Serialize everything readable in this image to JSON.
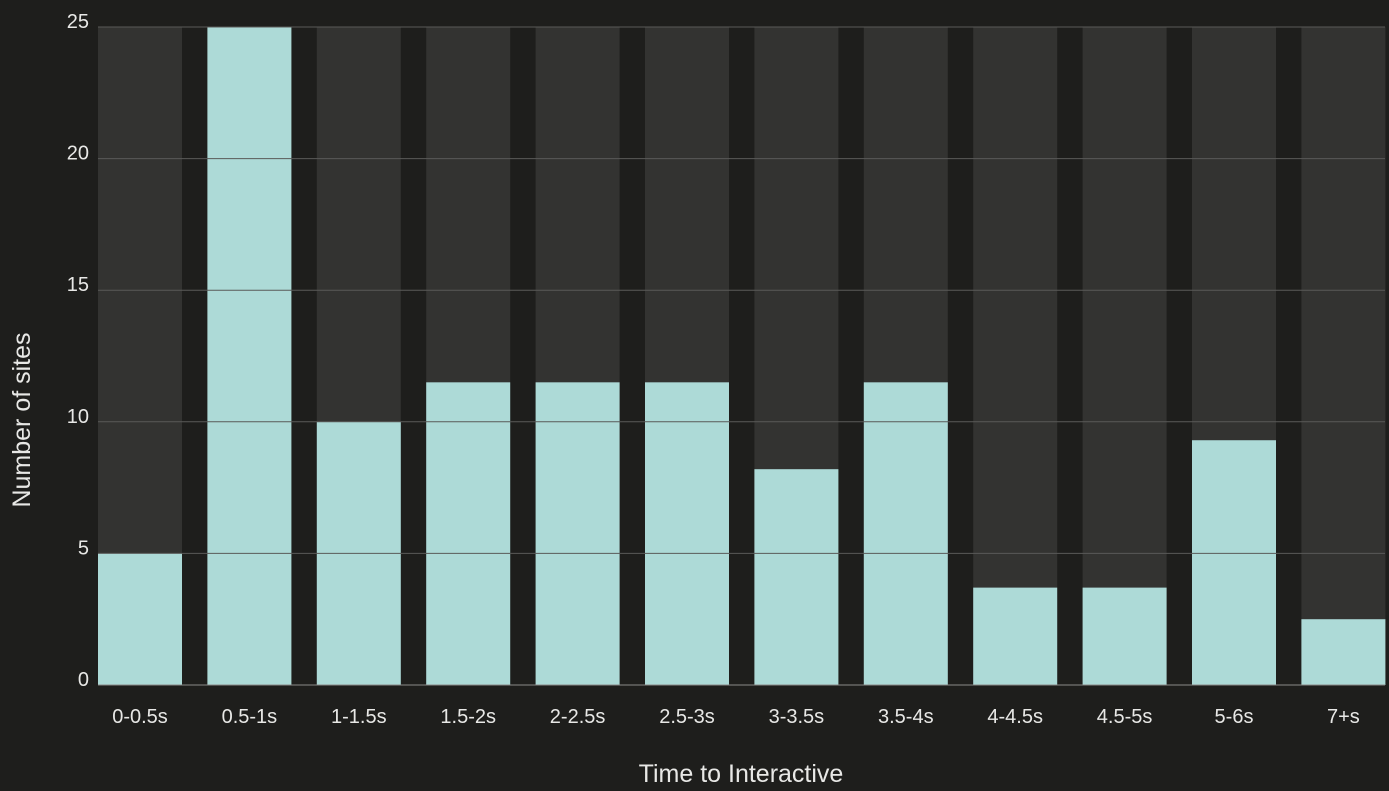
{
  "chart_data": {
    "type": "bar",
    "title": "",
    "xlabel": "Time to Interactive",
    "ylabel": "Number of sites",
    "ylim": [
      0,
      25
    ],
    "yticks": [
      0,
      5,
      10,
      15,
      20,
      25
    ],
    "grid": true,
    "categories": [
      "0-0.5s",
      "0.5-1s",
      "1-1.5s",
      "1.5-2s",
      "2-2.5s",
      "2.5-3s",
      "3-3.5s",
      "3.5-4s",
      "4-4.5s",
      "4.5-5s",
      "5-6s",
      "7+s"
    ],
    "values": [
      5,
      25,
      10,
      11.5,
      11.5,
      11.5,
      8.2,
      11.5,
      3.7,
      3.7,
      9.3,
      2.5
    ],
    "colors": {
      "background": "#1e1e1c",
      "bar": "#addad7",
      "bar_track": "#333331",
      "grid": "#5a5a58",
      "baseline": "#8a8a88",
      "text": "#e8e8e6"
    }
  }
}
